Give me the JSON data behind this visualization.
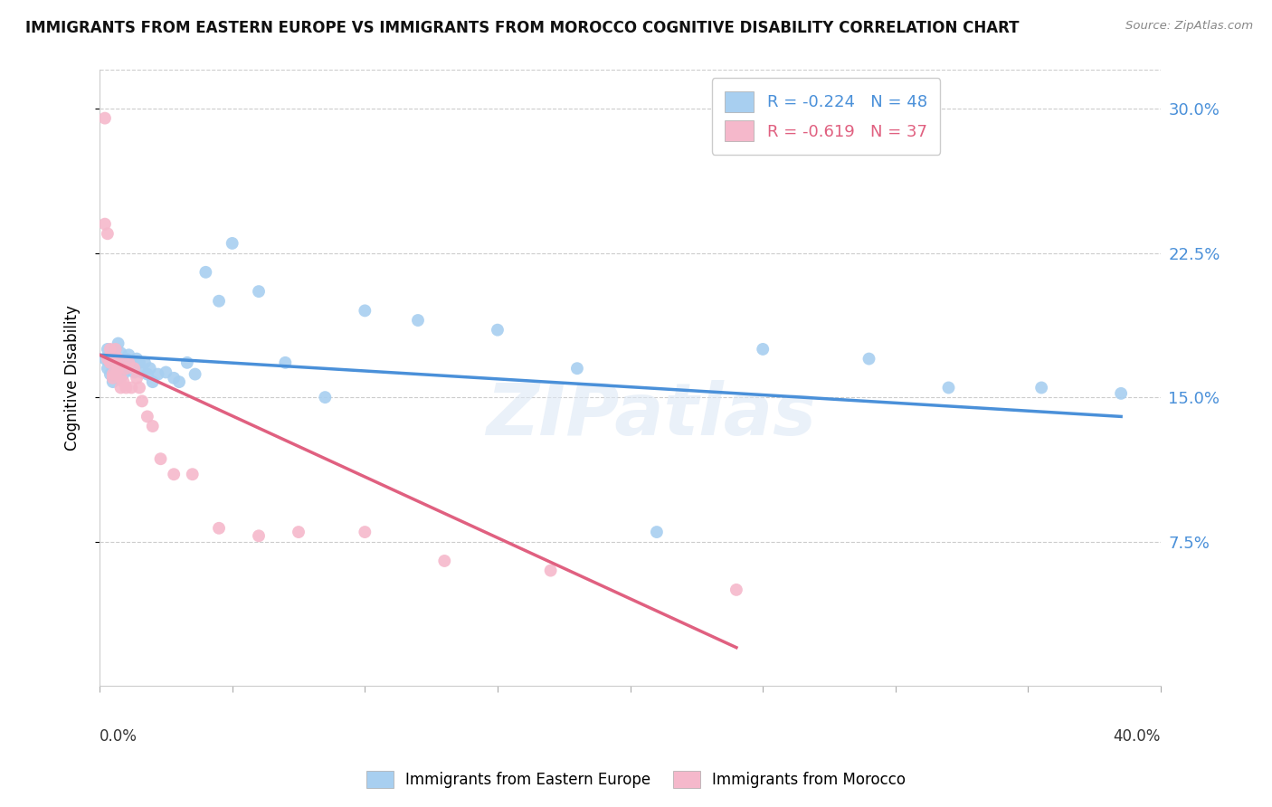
{
  "title": "IMMIGRANTS FROM EASTERN EUROPE VS IMMIGRANTS FROM MOROCCO COGNITIVE DISABILITY CORRELATION CHART",
  "source": "Source: ZipAtlas.com",
  "ylabel": "Cognitive Disability",
  "y_ticks": [
    0.075,
    0.15,
    0.225,
    0.3
  ],
  "y_tick_labels": [
    "7.5%",
    "15.0%",
    "22.5%",
    "30.0%"
  ],
  "xlim": [
    0.0,
    0.4
  ],
  "ylim": [
    0.0,
    0.32
  ],
  "R_blue": -0.224,
  "N_blue": 48,
  "R_pink": -0.619,
  "N_pink": 37,
  "blue_color": "#a8cff0",
  "pink_color": "#f5b8cb",
  "blue_line_color": "#4a90d9",
  "pink_line_color": "#e06080",
  "watermark": "ZIPatlas",
  "legend_label_blue": "Immigrants from Eastern Europe",
  "legend_label_pink": "Immigrants from Morocco",
  "blue_points_x": [
    0.002,
    0.003,
    0.003,
    0.004,
    0.004,
    0.005,
    0.005,
    0.006,
    0.006,
    0.007,
    0.007,
    0.008,
    0.008,
    0.009,
    0.01,
    0.01,
    0.011,
    0.012,
    0.013,
    0.014,
    0.015,
    0.016,
    0.017,
    0.018,
    0.019,
    0.02,
    0.022,
    0.025,
    0.028,
    0.03,
    0.033,
    0.036,
    0.04,
    0.045,
    0.05,
    0.06,
    0.07,
    0.085,
    0.1,
    0.12,
    0.15,
    0.18,
    0.21,
    0.25,
    0.29,
    0.32,
    0.355,
    0.385
  ],
  "blue_points_y": [
    0.17,
    0.165,
    0.175,
    0.168,
    0.162,
    0.172,
    0.158,
    0.175,
    0.165,
    0.178,
    0.16,
    0.168,
    0.173,
    0.162,
    0.17,
    0.165,
    0.172,
    0.168,
    0.163,
    0.17,
    0.168,
    0.163,
    0.168,
    0.162,
    0.165,
    0.158,
    0.162,
    0.163,
    0.16,
    0.158,
    0.168,
    0.162,
    0.215,
    0.2,
    0.23,
    0.205,
    0.168,
    0.15,
    0.195,
    0.19,
    0.185,
    0.165,
    0.08,
    0.175,
    0.17,
    0.155,
    0.155,
    0.152
  ],
  "pink_points_x": [
    0.002,
    0.002,
    0.003,
    0.003,
    0.004,
    0.004,
    0.005,
    0.005,
    0.005,
    0.006,
    0.006,
    0.006,
    0.007,
    0.007,
    0.008,
    0.008,
    0.009,
    0.01,
    0.01,
    0.011,
    0.012,
    0.013,
    0.014,
    0.015,
    0.016,
    0.018,
    0.02,
    0.023,
    0.028,
    0.035,
    0.045,
    0.06,
    0.075,
    0.1,
    0.13,
    0.17,
    0.24
  ],
  "pink_points_y": [
    0.295,
    0.24,
    0.235,
    0.17,
    0.168,
    0.175,
    0.162,
    0.17,
    0.16,
    0.168,
    0.175,
    0.162,
    0.165,
    0.17,
    0.155,
    0.16,
    0.158,
    0.165,
    0.155,
    0.168,
    0.155,
    0.165,
    0.16,
    0.155,
    0.148,
    0.14,
    0.135,
    0.118,
    0.11,
    0.11,
    0.082,
    0.078,
    0.08,
    0.08,
    0.065,
    0.06,
    0.05
  ],
  "blue_line_x": [
    0.0,
    0.385
  ],
  "blue_line_y": [
    0.172,
    0.14
  ],
  "pink_line_x": [
    0.0,
    0.24
  ],
  "pink_line_y": [
    0.172,
    0.02
  ]
}
